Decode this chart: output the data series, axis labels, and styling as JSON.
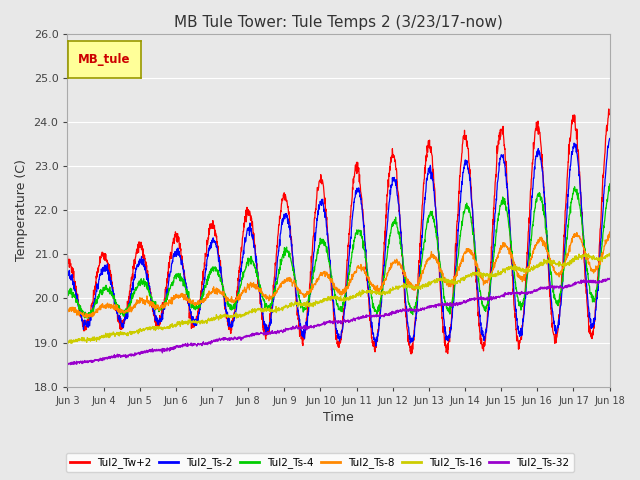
{
  "title": "MB Tule Tower: Tule Temps 2 (3/23/17-now)",
  "xlabel": "Time",
  "ylabel": "Temperature (C)",
  "ylim": [
    18.0,
    26.0
  ],
  "yticks": [
    18.0,
    19.0,
    20.0,
    21.0,
    22.0,
    23.0,
    24.0,
    25.0,
    26.0
  ],
  "xtick_labels": [
    "Jun 3",
    "Jun 4",
    "Jun 5",
    "Jun 6",
    "Jun 7",
    "Jun 8",
    "Jun 9",
    "Jun 10",
    "Jun 11",
    "Jun 12",
    "Jun 13",
    "Jun 14",
    "Jun 15",
    "Jun 16",
    "Jun 17",
    "Jun 18"
  ],
  "legend_label": "MB_tule",
  "series_names": [
    "Tul2_Tw+2",
    "Tul2_Ts-2",
    "Tul2_Ts-4",
    "Tul2_Ts-8",
    "Tul2_Ts-16",
    "Tul2_Ts-32"
  ],
  "series_colors": [
    "#ff0000",
    "#0000ff",
    "#00cc00",
    "#ff8800",
    "#cccc00",
    "#9900cc"
  ],
  "background_color": "#e8e8e8",
  "plot_bg_color": "#e8e8e8",
  "title_fontsize": 11,
  "axis_fontsize": 9,
  "legend_box_facecolor": "#ffff99",
  "legend_box_edgecolor": "#999900"
}
